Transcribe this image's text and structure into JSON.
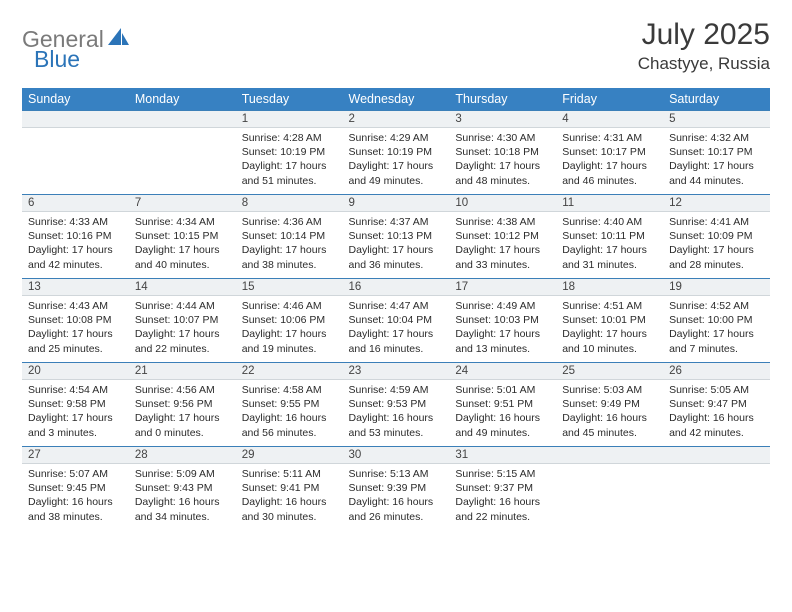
{
  "logo": {
    "gray": "General",
    "blue": "Blue"
  },
  "title": "July 2025",
  "location": "Chastyye, Russia",
  "colors": {
    "header_bg": "#3781c2",
    "header_text": "#ffffff",
    "daynum_bg": "#eef1f3",
    "daynum_border_top": "#3b7fb8",
    "text": "#2b2b2b",
    "logo_gray": "#7a7a7a",
    "logo_blue": "#2b74b8"
  },
  "weekdays": [
    "Sunday",
    "Monday",
    "Tuesday",
    "Wednesday",
    "Thursday",
    "Friday",
    "Saturday"
  ],
  "weeks": [
    [
      {
        "blank": true
      },
      {
        "blank": true
      },
      {
        "day": "1",
        "sunrise": "4:28 AM",
        "sunset": "10:19 PM",
        "daylight": "17 hours and 51 minutes."
      },
      {
        "day": "2",
        "sunrise": "4:29 AM",
        "sunset": "10:19 PM",
        "daylight": "17 hours and 49 minutes."
      },
      {
        "day": "3",
        "sunrise": "4:30 AM",
        "sunset": "10:18 PM",
        "daylight": "17 hours and 48 minutes."
      },
      {
        "day": "4",
        "sunrise": "4:31 AM",
        "sunset": "10:17 PM",
        "daylight": "17 hours and 46 minutes."
      },
      {
        "day": "5",
        "sunrise": "4:32 AM",
        "sunset": "10:17 PM",
        "daylight": "17 hours and 44 minutes."
      }
    ],
    [
      {
        "day": "6",
        "sunrise": "4:33 AM",
        "sunset": "10:16 PM",
        "daylight": "17 hours and 42 minutes."
      },
      {
        "day": "7",
        "sunrise": "4:34 AM",
        "sunset": "10:15 PM",
        "daylight": "17 hours and 40 minutes."
      },
      {
        "day": "8",
        "sunrise": "4:36 AM",
        "sunset": "10:14 PM",
        "daylight": "17 hours and 38 minutes."
      },
      {
        "day": "9",
        "sunrise": "4:37 AM",
        "sunset": "10:13 PM",
        "daylight": "17 hours and 36 minutes."
      },
      {
        "day": "10",
        "sunrise": "4:38 AM",
        "sunset": "10:12 PM",
        "daylight": "17 hours and 33 minutes."
      },
      {
        "day": "11",
        "sunrise": "4:40 AM",
        "sunset": "10:11 PM",
        "daylight": "17 hours and 31 minutes."
      },
      {
        "day": "12",
        "sunrise": "4:41 AM",
        "sunset": "10:09 PM",
        "daylight": "17 hours and 28 minutes."
      }
    ],
    [
      {
        "day": "13",
        "sunrise": "4:43 AM",
        "sunset": "10:08 PM",
        "daylight": "17 hours and 25 minutes."
      },
      {
        "day": "14",
        "sunrise": "4:44 AM",
        "sunset": "10:07 PM",
        "daylight": "17 hours and 22 minutes."
      },
      {
        "day": "15",
        "sunrise": "4:46 AM",
        "sunset": "10:06 PM",
        "daylight": "17 hours and 19 minutes."
      },
      {
        "day": "16",
        "sunrise": "4:47 AM",
        "sunset": "10:04 PM",
        "daylight": "17 hours and 16 minutes."
      },
      {
        "day": "17",
        "sunrise": "4:49 AM",
        "sunset": "10:03 PM",
        "daylight": "17 hours and 13 minutes."
      },
      {
        "day": "18",
        "sunrise": "4:51 AM",
        "sunset": "10:01 PM",
        "daylight": "17 hours and 10 minutes."
      },
      {
        "day": "19",
        "sunrise": "4:52 AM",
        "sunset": "10:00 PM",
        "daylight": "17 hours and 7 minutes."
      }
    ],
    [
      {
        "day": "20",
        "sunrise": "4:54 AM",
        "sunset": "9:58 PM",
        "daylight": "17 hours and 3 minutes."
      },
      {
        "day": "21",
        "sunrise": "4:56 AM",
        "sunset": "9:56 PM",
        "daylight": "17 hours and 0 minutes."
      },
      {
        "day": "22",
        "sunrise": "4:58 AM",
        "sunset": "9:55 PM",
        "daylight": "16 hours and 56 minutes."
      },
      {
        "day": "23",
        "sunrise": "4:59 AM",
        "sunset": "9:53 PM",
        "daylight": "16 hours and 53 minutes."
      },
      {
        "day": "24",
        "sunrise": "5:01 AM",
        "sunset": "9:51 PM",
        "daylight": "16 hours and 49 minutes."
      },
      {
        "day": "25",
        "sunrise": "5:03 AM",
        "sunset": "9:49 PM",
        "daylight": "16 hours and 45 minutes."
      },
      {
        "day": "26",
        "sunrise": "5:05 AM",
        "sunset": "9:47 PM",
        "daylight": "16 hours and 42 minutes."
      }
    ],
    [
      {
        "day": "27",
        "sunrise": "5:07 AM",
        "sunset": "9:45 PM",
        "daylight": "16 hours and 38 minutes."
      },
      {
        "day": "28",
        "sunrise": "5:09 AM",
        "sunset": "9:43 PM",
        "daylight": "16 hours and 34 minutes."
      },
      {
        "day": "29",
        "sunrise": "5:11 AM",
        "sunset": "9:41 PM",
        "daylight": "16 hours and 30 minutes."
      },
      {
        "day": "30",
        "sunrise": "5:13 AM",
        "sunset": "9:39 PM",
        "daylight": "16 hours and 26 minutes."
      },
      {
        "day": "31",
        "sunrise": "5:15 AM",
        "sunset": "9:37 PM",
        "daylight": "16 hours and 22 minutes."
      },
      {
        "blank": true
      },
      {
        "blank": true
      }
    ]
  ],
  "labels": {
    "sunrise": "Sunrise:",
    "sunset": "Sunset:",
    "daylight": "Daylight:"
  }
}
